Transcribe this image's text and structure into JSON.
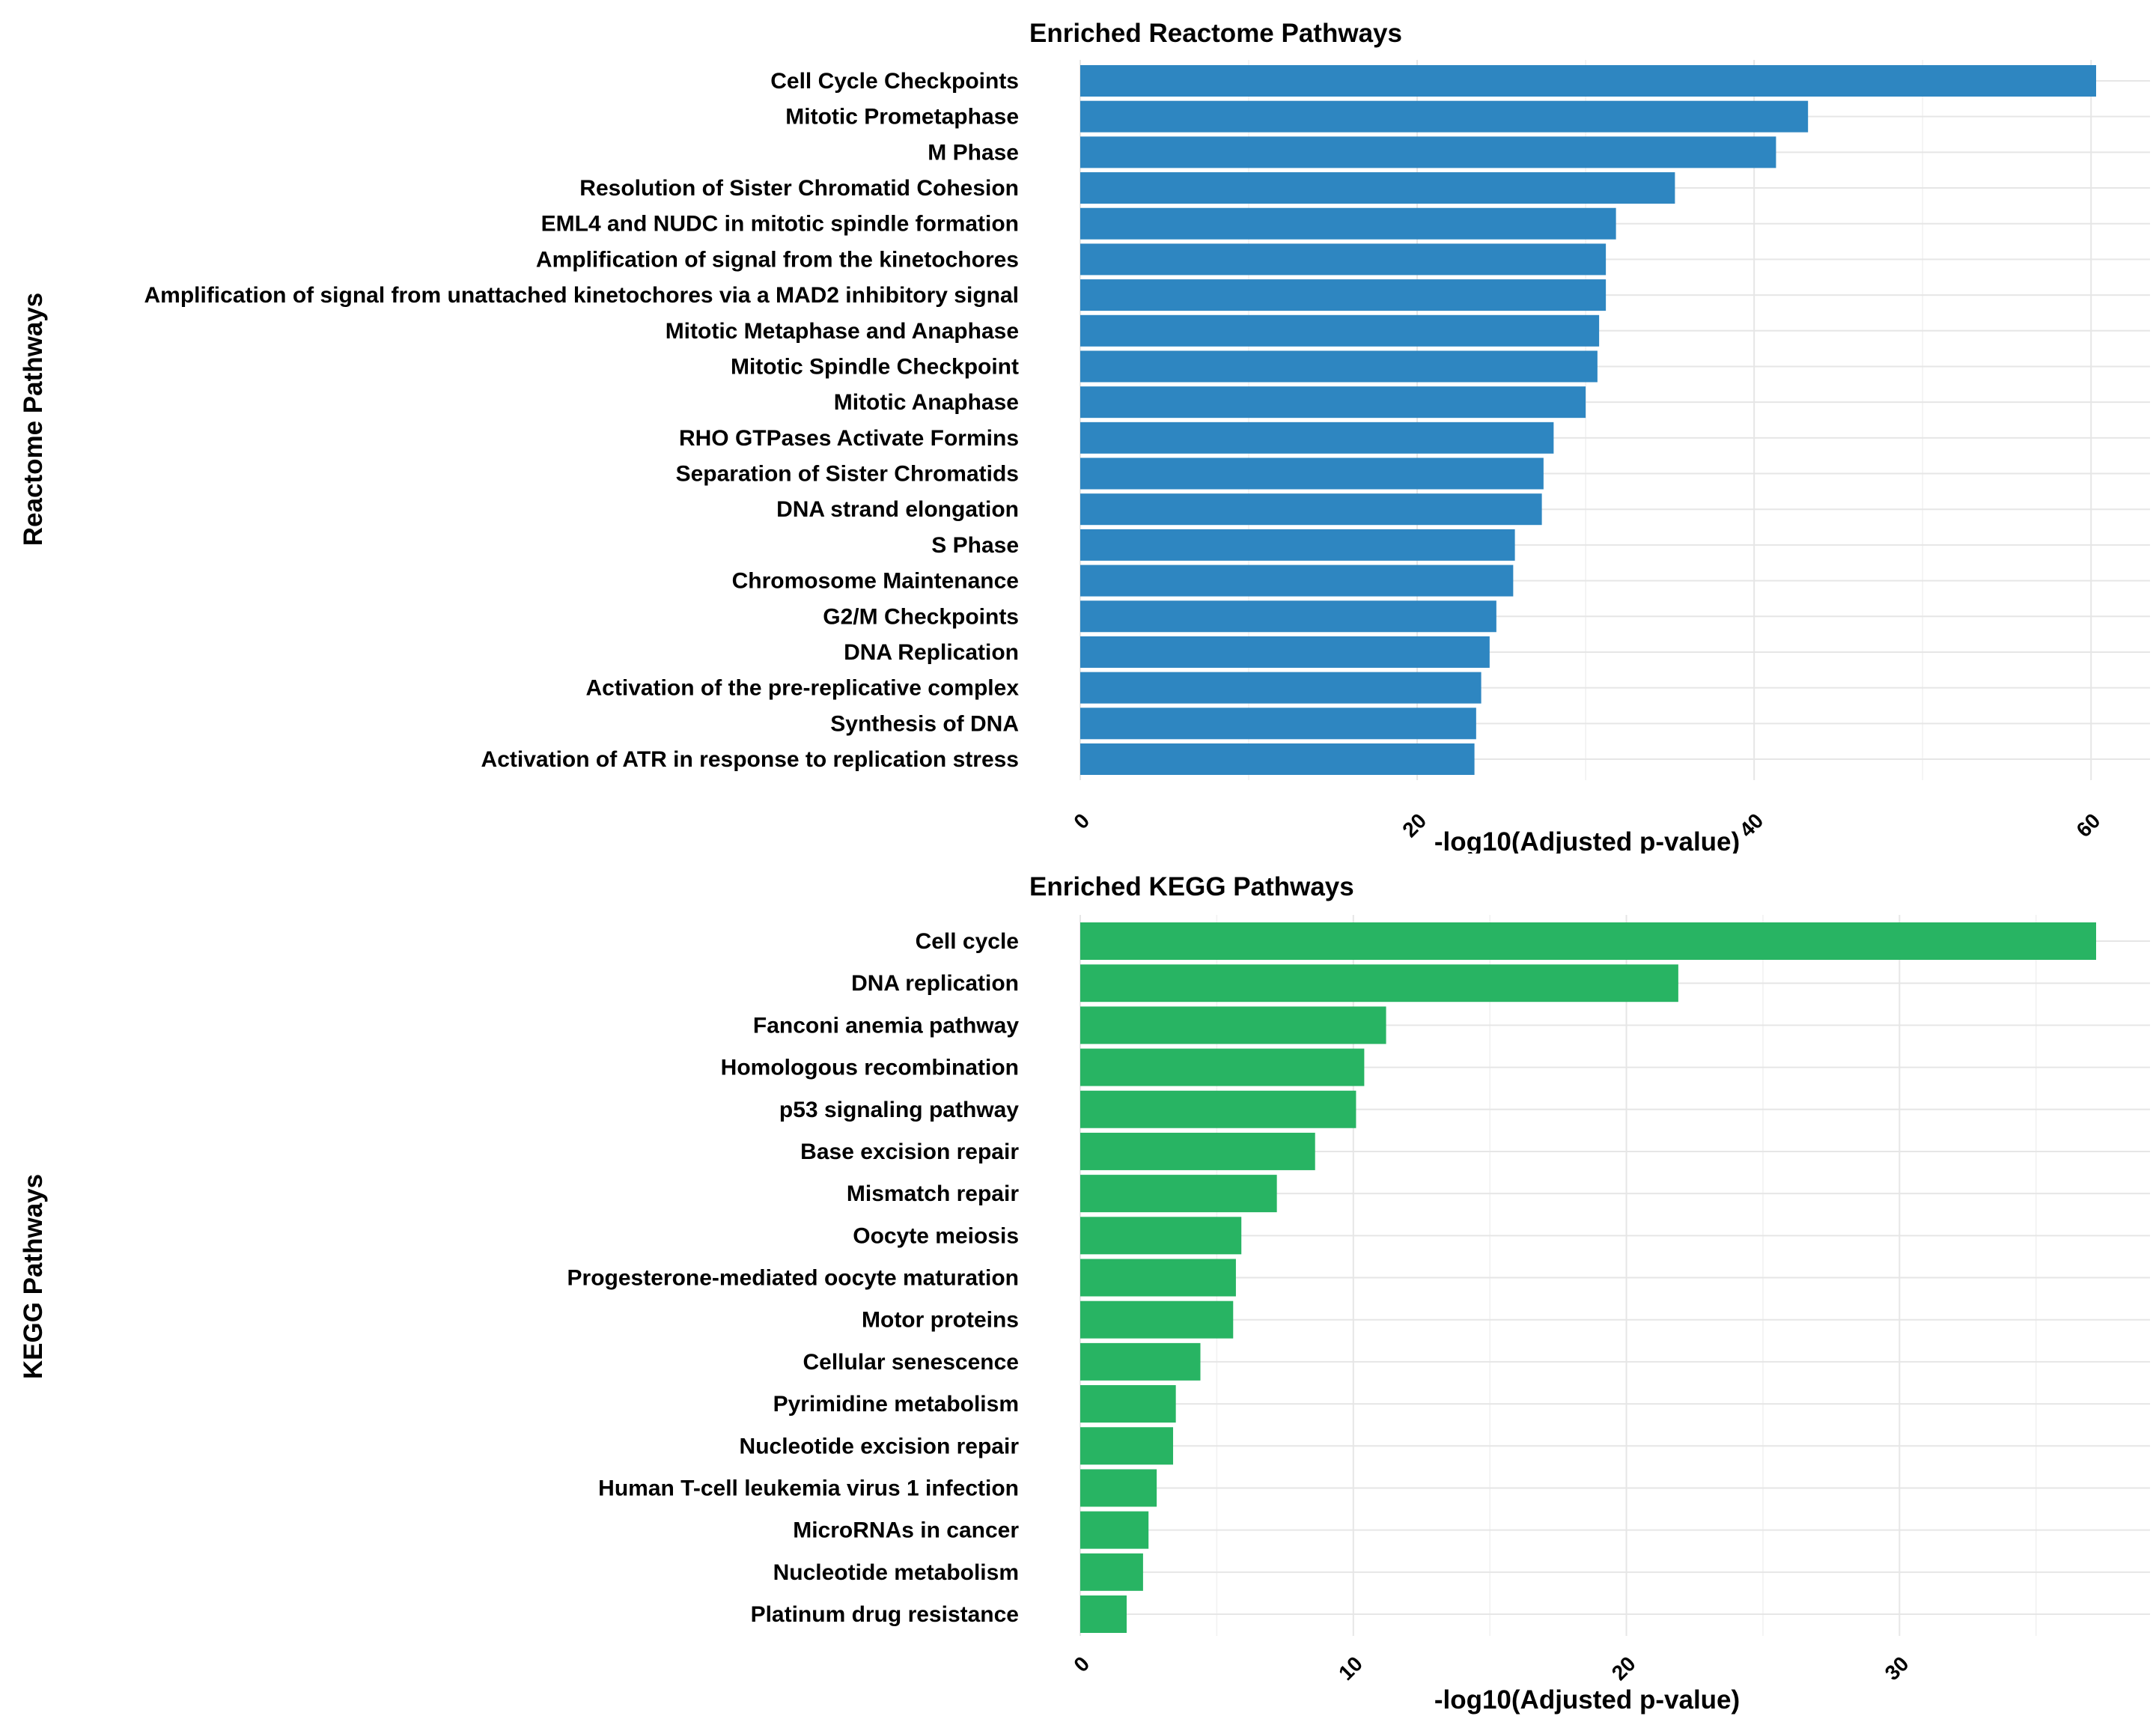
{
  "chart_data": [
    {
      "type": "bar",
      "orientation": "horizontal",
      "title": "Enriched Reactome Pathways",
      "xlabel": "-log10(Adjusted p-value)",
      "ylabel": "Reactome Pathways",
      "xlim": [
        0,
        63
      ],
      "x_ticks": [
        0,
        20,
        40,
        60
      ],
      "color": "#2e86c1",
      "grid": true,
      "categories": [
        "Cell Cycle Checkpoints",
        "Mitotic Prometaphase",
        "M Phase",
        "Resolution of Sister Chromatid Cohesion",
        "EML4 and NUDC in mitotic spindle formation",
        "Amplification of signal from the kinetochores",
        "Amplification  of signal from unattached  kinetochores via a MAD2  inhibitory signal",
        "Mitotic Metaphase and Anaphase",
        "Mitotic Spindle Checkpoint",
        "Mitotic Anaphase",
        "RHO GTPases Activate Formins",
        "Separation of Sister Chromatids",
        "DNA strand elongation",
        "S Phase",
        "Chromosome Maintenance",
        "G2/M Checkpoints",
        "DNA Replication",
        "Activation of the pre-replicative complex",
        "Synthesis of DNA",
        "Activation of ATR in response to replication stress"
      ],
      "values": [
        60.3,
        43.2,
        41.3,
        35.3,
        31.8,
        31.2,
        31.2,
        30.8,
        30.7,
        30.0,
        28.1,
        27.5,
        27.4,
        25.8,
        25.7,
        24.7,
        24.3,
        23.8,
        23.5,
        23.4
      ]
    },
    {
      "type": "bar",
      "orientation": "horizontal",
      "title": "Enriched KEGG Pathways",
      "xlabel": "-log10(Adjusted p-value)",
      "ylabel": "KEGG Pathways",
      "xlim": [
        0,
        39
      ],
      "x_ticks": [
        0,
        10,
        20,
        30
      ],
      "color": "#28b463",
      "grid": true,
      "categories": [
        "Cell cycle",
        "DNA replication",
        "Fanconi anemia pathway",
        "Homologous recombination",
        "p53 signaling pathway",
        "Base excision repair",
        "Mismatch repair",
        "Oocyte meiosis",
        "Progesterone-mediated oocyte maturation",
        "Motor proteins",
        "Cellular senescence",
        "Pyrimidine metabolism",
        "Nucleotide excision repair",
        "Human T-cell leukemia virus 1 infection",
        "MicroRNAs in cancer",
        "Nucleotide metabolism",
        "Platinum drug resistance"
      ],
      "values": [
        37.2,
        21.9,
        11.2,
        10.4,
        10.1,
        8.6,
        7.2,
        5.9,
        5.7,
        5.6,
        4.4,
        3.5,
        3.4,
        2.8,
        2.5,
        2.3,
        1.7
      ]
    }
  ]
}
